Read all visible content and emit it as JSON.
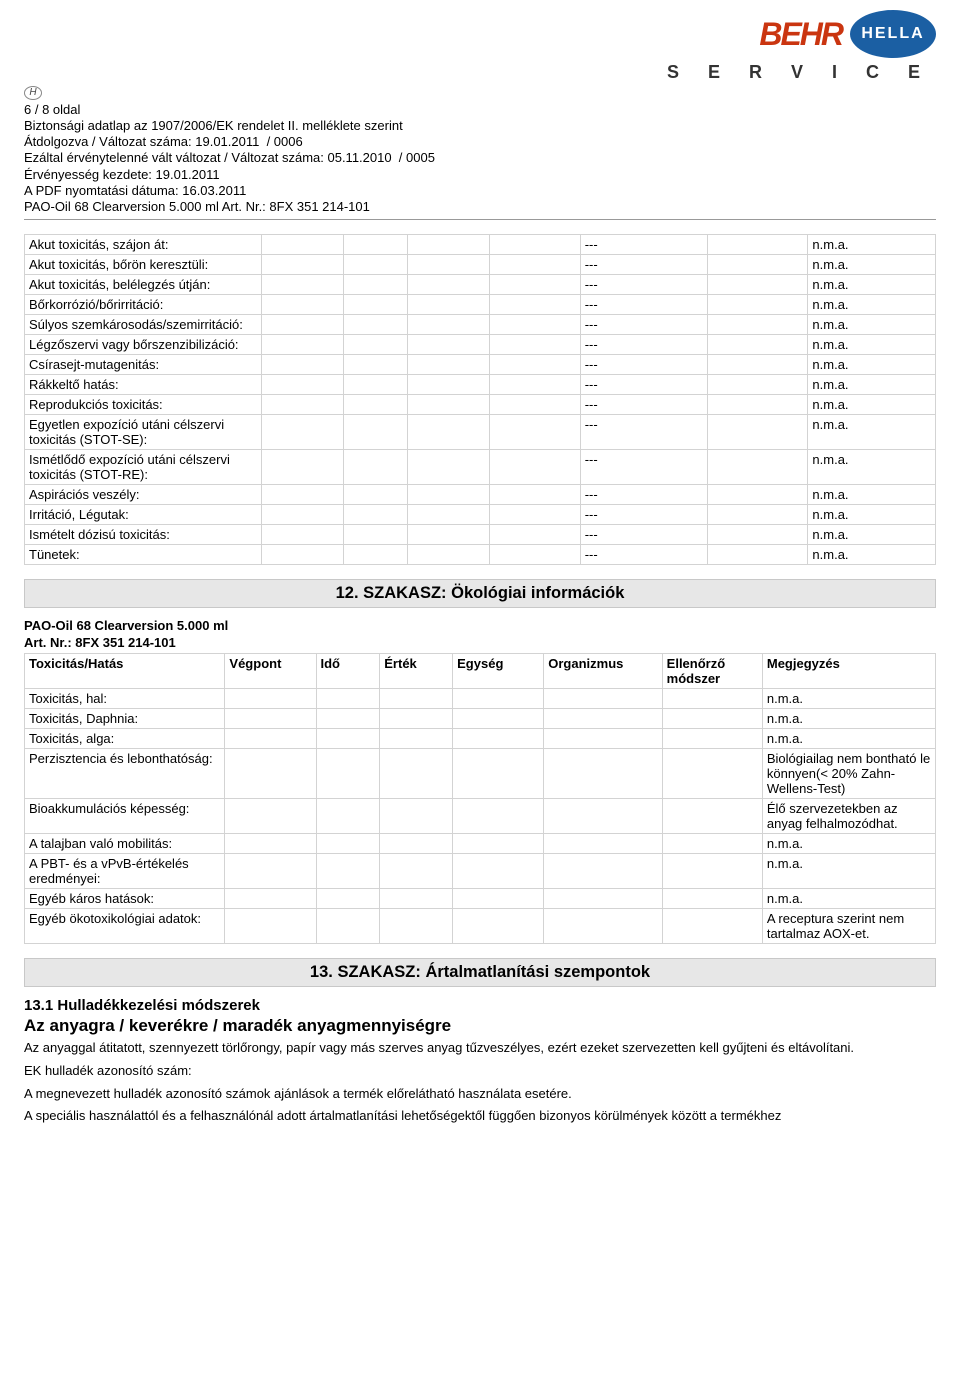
{
  "logos": {
    "behr": "BEHR",
    "hella": "HELLA",
    "service": "S E R V I C E"
  },
  "badge": "H",
  "meta": {
    "line1": "6 / 8 oldal",
    "line2": "Biztonsági adatlap az 1907/2006/EK rendelet II. melléklete szerint",
    "line3": "Átdolgozva / Változat száma: 19.01.2011  / 0006",
    "line4": "Ezáltal érvénytelenné vált változat / Változat száma: 05.11.2010  / 0005",
    "line5": "Érvényesség kezdete: 19.01.2011",
    "line6": "A PDF nyomtatási dátuma: 16.03.2011",
    "line7": "PAO-Oil 68 Clearversion 5.000 ml Art. Nr.: 8FX 351 214-101"
  },
  "tox_table": {
    "rows": [
      {
        "label": "Akut toxicitás, szájon át:",
        "dash": "---",
        "note": "n.m.a."
      },
      {
        "label": "Akut toxicitás, bőrön keresztüli:",
        "dash": "---",
        "note": "n.m.a."
      },
      {
        "label": "Akut toxicitás, belélegzés útján:",
        "dash": "---",
        "note": "n.m.a."
      },
      {
        "label": "Bőrkorrózió/bőrirritáció:",
        "dash": "---",
        "note": "n.m.a."
      },
      {
        "label": "Súlyos szemkárosodás/szemirritáció:",
        "dash": "---",
        "note": "n.m.a."
      },
      {
        "label": "Légzőszervi vagy bőrszenzibilizáció:",
        "dash": "---",
        "note": "n.m.a."
      },
      {
        "label": "Csírasejt-mutagenitás:",
        "dash": "---",
        "note": "n.m.a."
      },
      {
        "label": "Rákkeltő hatás:",
        "dash": "---",
        "note": "n.m.a."
      },
      {
        "label": "Reprodukciós toxicitás:",
        "dash": "---",
        "note": "n.m.a."
      },
      {
        "label": "Egyetlen expozíció utáni célszervi toxicitás (STOT-SE):",
        "dash": "---",
        "note": "n.m.a."
      },
      {
        "label": "Ismétlődő expozíció utáni célszervi toxicitás (STOT-RE):",
        "dash": "---",
        "note": "n.m.a."
      },
      {
        "label": "Aspirációs veszély:",
        "dash": "---",
        "note": "n.m.a."
      },
      {
        "label": "Irritáció, Légutak:",
        "dash": "---",
        "note": "n.m.a."
      },
      {
        "label": "Ismételt dózisú toxicitás:",
        "dash": "---",
        "note": "n.m.a."
      },
      {
        "label": "Tünetek:",
        "dash": "---",
        "note": "n.m.a."
      }
    ]
  },
  "section12_title": "12. SZAKASZ: Ökológiai információk",
  "product": {
    "line1": "PAO-Oil 68 Clearversion 5.000 ml",
    "line2": "Art. Nr.: 8FX 351 214-101"
  },
  "eco_headers": {
    "c0": "Toxicitás/Hatás",
    "c1": "Végpont",
    "c2": "Idő",
    "c3": "Érték",
    "c4": "Egység",
    "c5": "Organizmus",
    "c6": "Ellenőrző módszer",
    "c7": "Megjegyzés"
  },
  "eco_rows": [
    {
      "label": "Toxicitás, hal:",
      "note": "n.m.a."
    },
    {
      "label": "Toxicitás, Daphnia:",
      "note": "n.m.a."
    },
    {
      "label": "Toxicitás, alga:",
      "note": "n.m.a."
    },
    {
      "label": "Perzisztencia és lebonthatóság:",
      "note": "Biológiailag nem bontható le könnyen(< 20% Zahn-Wellens-Test)"
    },
    {
      "label": "Bioakkumulációs képesség:",
      "note": "Élő szervezetekben az anyag felhalmozódhat."
    },
    {
      "label": "A talajban való mobilitás:",
      "note": "n.m.a."
    },
    {
      "label": "A PBT- és a vPvB-értékelés eredményei:",
      "note": "n.m.a."
    },
    {
      "label": "Egyéb káros hatások:",
      "note": "n.m.a."
    },
    {
      "label": "Egyéb ökotoxikológiai adatok:",
      "note": "A receptura szerint nem tartalmaz AOX-et."
    }
  ],
  "section13_title": "13. SZAKASZ: Ártalmatlanítási szempontok",
  "s13": {
    "h1": "13.1 Hulladékkezelési módszerek",
    "h2": "Az anyagra / keverékre / maradék anyagmennyiségre",
    "p1": "Az anyaggal átitatott, szennyezett törlőrongy, papír vagy más szerves anyag tűzveszélyes, ezért ezeket szervezetten kell gyűjteni és eltávolítani.",
    "p2": "EK hulladék azonosító szám:",
    "p3": "A megnevezett hulladék azonosító számok ajánlások a termék előrelátható használata esetére.",
    "p4": "A speciális használattól és a felhasználónál adott ártalmatlanítási lehetőségektől függően bizonyos körülmények között a termékhez"
  }
}
